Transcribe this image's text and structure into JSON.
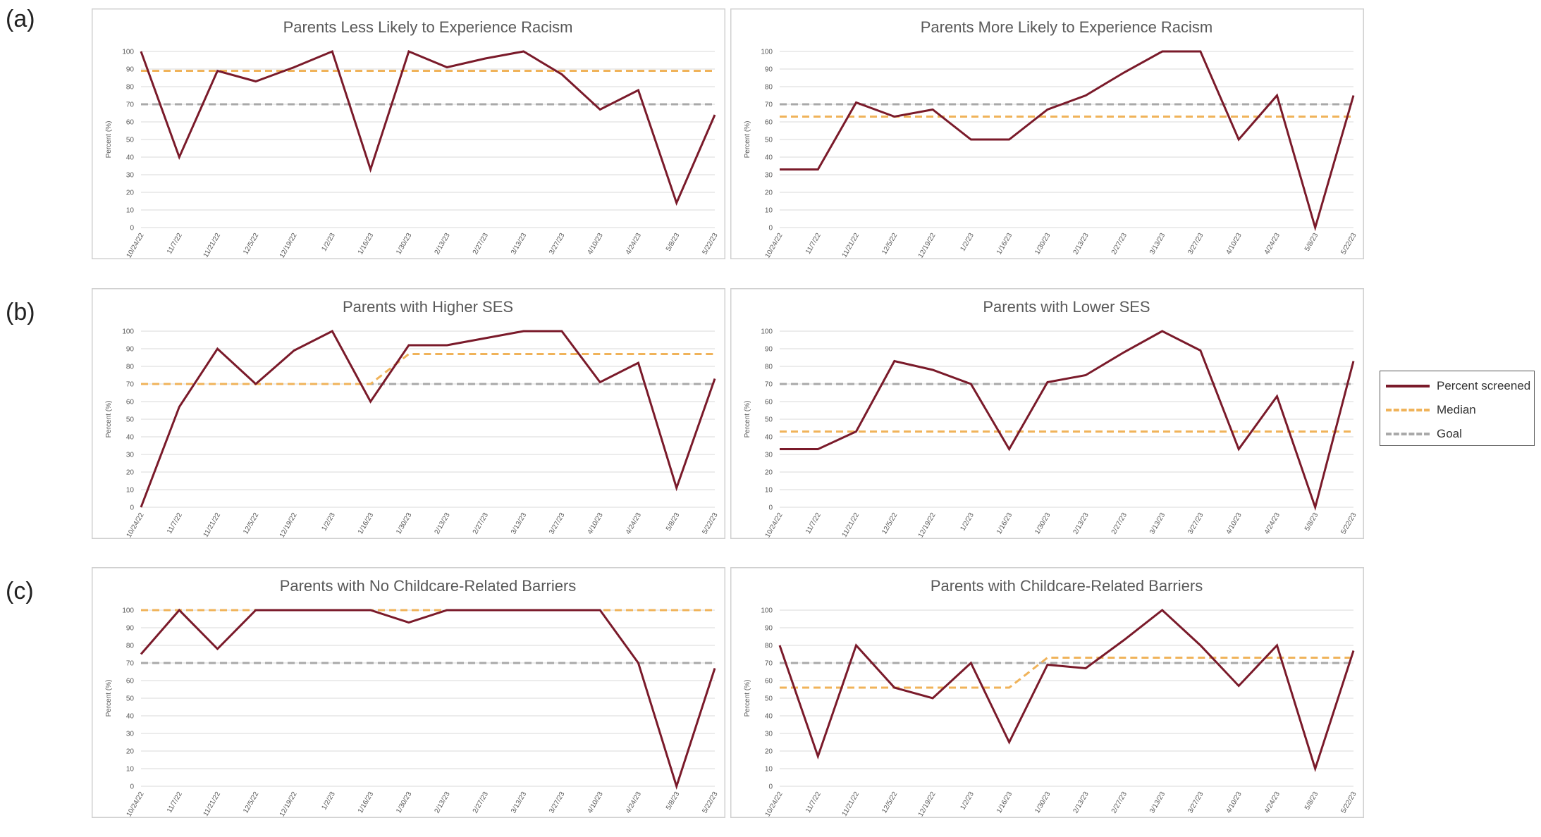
{
  "panel_labels": [
    "(a)",
    "(b)",
    "(c)"
  ],
  "colors": {
    "percent_screened": "#7a1a2a",
    "median": "#f0b35a",
    "goal": "#a9a9a9",
    "frame": "#d0d0d0",
    "grid": "#d9d9d9",
    "text": "#595959"
  },
  "legend": {
    "percent_screened": "Percent screened",
    "median": "Median",
    "goal": "Goal"
  },
  "chart_data": [
    {
      "type": "line",
      "title": "Parents Less Likely to Experience Racism",
      "ylabel": "Percent (%)",
      "ylim": [
        0,
        100
      ],
      "yticks": [
        0,
        10,
        20,
        30,
        40,
        50,
        60,
        70,
        80,
        90,
        100
      ],
      "categories": [
        "10/24/22",
        "11/7/22",
        "11/21/22",
        "12/5/22",
        "12/19/22",
        "1/2/23",
        "1/16/23",
        "1/30/23",
        "2/13/23",
        "2/27/23",
        "3/13/23",
        "3/27/23",
        "4/10/23",
        "4/24/23",
        "5/8/23",
        "5/22/23"
      ],
      "series": [
        {
          "name": "Percent screened",
          "values": [
            100,
            40,
            89,
            83,
            91,
            100,
            33,
            100,
            91,
            96,
            100,
            87,
            67,
            78,
            14,
            64
          ]
        },
        {
          "name": "Median",
          "values": [
            89,
            89,
            89,
            89,
            89,
            89,
            89,
            89,
            89,
            89,
            89,
            89,
            89,
            89,
            89,
            89
          ]
        },
        {
          "name": "Goal",
          "values": [
            70,
            70,
            70,
            70,
            70,
            70,
            70,
            70,
            70,
            70,
            70,
            70,
            70,
            70,
            70,
            70
          ]
        }
      ]
    },
    {
      "type": "line",
      "title": "Parents More Likely to Experience Racism",
      "ylabel": "Percent (%)",
      "ylim": [
        0,
        100
      ],
      "yticks": [
        0,
        10,
        20,
        30,
        40,
        50,
        60,
        70,
        80,
        90,
        100
      ],
      "categories": [
        "10/24/22",
        "11/7/22",
        "11/21/22",
        "12/5/22",
        "12/19/22",
        "1/2/23",
        "1/16/23",
        "1/30/23",
        "2/13/23",
        "2/27/23",
        "3/13/23",
        "3/27/23",
        "4/10/23",
        "4/24/23",
        "5/8/23",
        "5/22/23"
      ],
      "series": [
        {
          "name": "Percent screened",
          "values": [
            33,
            33,
            71,
            63,
            67,
            50,
            50,
            67,
            75,
            88,
            100,
            100,
            50,
            75,
            0,
            75
          ]
        },
        {
          "name": "Median",
          "values": [
            63,
            63,
            63,
            63,
            63,
            63,
            63,
            63,
            63,
            63,
            63,
            63,
            63,
            63,
            63,
            63
          ]
        },
        {
          "name": "Goal",
          "values": [
            70,
            70,
            70,
            70,
            70,
            70,
            70,
            70,
            70,
            70,
            70,
            70,
            70,
            70,
            70,
            70
          ]
        }
      ]
    },
    {
      "type": "line",
      "title": "Parents with Higher SES",
      "ylabel": "Percent (%)",
      "ylim": [
        0,
        100
      ],
      "yticks": [
        0,
        10,
        20,
        30,
        40,
        50,
        60,
        70,
        80,
        90,
        100
      ],
      "categories": [
        "10/24/22",
        "11/7/22",
        "11/21/22",
        "12/5/22",
        "12/19/22",
        "1/2/23",
        "1/16/23",
        "1/30/23",
        "2/13/23",
        "2/27/23",
        "3/13/23",
        "3/27/23",
        "4/10/23",
        "4/24/23",
        "5/8/23",
        "5/22/23"
      ],
      "series": [
        {
          "name": "Percent screened",
          "values": [
            0,
            57,
            90,
            70,
            89,
            100,
            60,
            92,
            92,
            96,
            100,
            100,
            71,
            82,
            11,
            73
          ]
        },
        {
          "name": "Median",
          "values": [
            70,
            70,
            70,
            70,
            70,
            70,
            70,
            87,
            87,
            87,
            87,
            87,
            87,
            87,
            87,
            87
          ]
        },
        {
          "name": "Goal",
          "values": [
            70,
            70,
            70,
            70,
            70,
            70,
            70,
            70,
            70,
            70,
            70,
            70,
            70,
            70,
            70,
            70
          ]
        }
      ]
    },
    {
      "type": "line",
      "title": "Parents with Lower SES",
      "ylabel": "Percent (%)",
      "ylim": [
        0,
        100
      ],
      "yticks": [
        0,
        10,
        20,
        30,
        40,
        50,
        60,
        70,
        80,
        90,
        100
      ],
      "categories": [
        "10/24/22",
        "11/7/22",
        "11/21/22",
        "12/5/22",
        "12/19/22",
        "1/2/23",
        "1/16/23",
        "1/30/23",
        "2/13/23",
        "2/27/23",
        "3/13/23",
        "3/27/23",
        "4/10/23",
        "4/24/23",
        "5/8/23",
        "5/22/23"
      ],
      "series": [
        {
          "name": "Percent screened",
          "values": [
            33,
            33,
            43,
            83,
            78,
            70,
            33,
            71,
            75,
            88,
            100,
            89,
            33,
            63,
            0,
            83
          ]
        },
        {
          "name": "Median",
          "values": [
            43,
            43,
            43,
            43,
            43,
            43,
            43,
            43,
            43,
            43,
            43,
            43,
            43,
            43,
            43,
            43
          ]
        },
        {
          "name": "Goal",
          "values": [
            70,
            70,
            70,
            70,
            70,
            70,
            70,
            70,
            70,
            70,
            70,
            70,
            70,
            70,
            70,
            70
          ]
        }
      ]
    },
    {
      "type": "line",
      "title": "Parents with No Childcare-Related Barriers",
      "ylabel": "Percent (%)",
      "ylim": [
        0,
        100
      ],
      "yticks": [
        0,
        10,
        20,
        30,
        40,
        50,
        60,
        70,
        80,
        90,
        100
      ],
      "categories": [
        "10/24/22",
        "11/7/22",
        "11/21/22",
        "12/5/22",
        "12/19/22",
        "1/2/23",
        "1/16/23",
        "1/30/23",
        "2/13/23",
        "2/27/23",
        "3/13/23",
        "3/27/23",
        "4/10/23",
        "4/24/23",
        "5/8/23",
        "5/22/23"
      ],
      "series": [
        {
          "name": "Percent screened",
          "values": [
            75,
            100,
            78,
            100,
            100,
            100,
            100,
            93,
            100,
            100,
            100,
            100,
            100,
            70,
            0,
            67
          ]
        },
        {
          "name": "Median",
          "values": [
            100,
            100,
            100,
            100,
            100,
            100,
            100,
            100,
            100,
            100,
            100,
            100,
            100,
            100,
            100,
            100
          ]
        },
        {
          "name": "Goal",
          "values": [
            70,
            70,
            70,
            70,
            70,
            70,
            70,
            70,
            70,
            70,
            70,
            70,
            70,
            70,
            70,
            70
          ]
        }
      ]
    },
    {
      "type": "line",
      "title": "Parents with Childcare-Related Barriers",
      "ylabel": "Percent (%)",
      "ylim": [
        0,
        100
      ],
      "yticks": [
        0,
        10,
        20,
        30,
        40,
        50,
        60,
        70,
        80,
        90,
        100
      ],
      "categories": [
        "10/24/22",
        "11/7/22",
        "11/21/22",
        "12/5/22",
        "12/19/22",
        "1/2/23",
        "1/16/23",
        "1/30/23",
        "2/13/23",
        "2/27/23",
        "3/13/23",
        "3/27/23",
        "4/10/23",
        "4/24/23",
        "5/8/23",
        "5/22/23"
      ],
      "series": [
        {
          "name": "Percent screened",
          "values": [
            80,
            17,
            80,
            56,
            50,
            70,
            25,
            69,
            67,
            83,
            100,
            80,
            57,
            80,
            10,
            77
          ]
        },
        {
          "name": "Median",
          "values": [
            56,
            56,
            56,
            56,
            56,
            56,
            56,
            73,
            73,
            73,
            73,
            73,
            73,
            73,
            73,
            73
          ]
        },
        {
          "name": "Goal",
          "values": [
            70,
            70,
            70,
            70,
            70,
            70,
            70,
            70,
            70,
            70,
            70,
            70,
            70,
            70,
            70,
            70
          ]
        }
      ]
    }
  ]
}
